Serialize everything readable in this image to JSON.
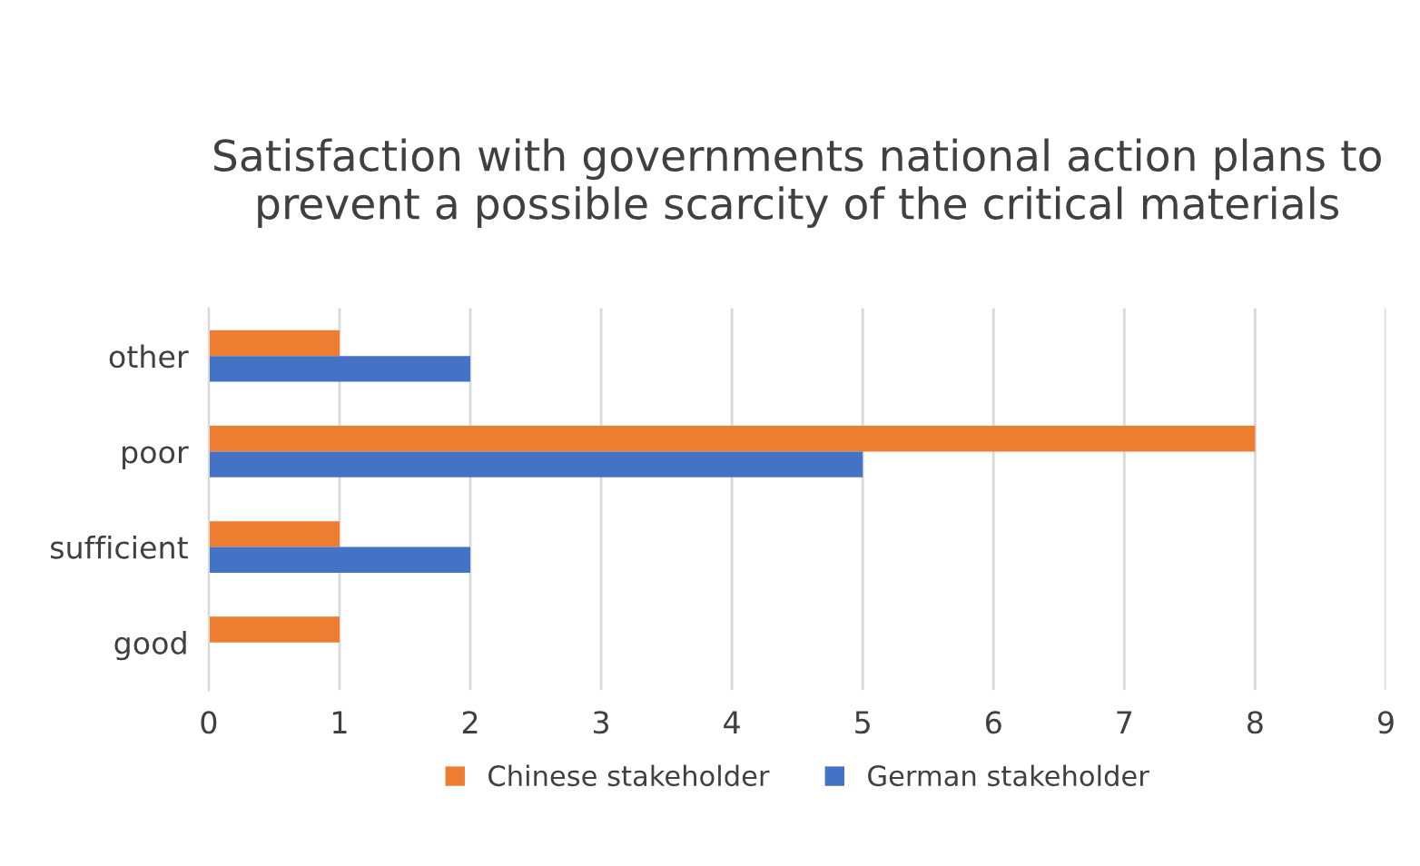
{
  "chart_data": {
    "type": "bar",
    "orientation": "horizontal",
    "title": "Satisfaction with governments national action plans to prevent a possible scarcity of the critical materials",
    "categories": [
      "other",
      "poor",
      "sufficient",
      "good"
    ],
    "series": [
      {
        "name": "Chinese stakeholder",
        "color": "#ed7d31",
        "values": [
          1,
          8,
          1,
          1
        ]
      },
      {
        "name": "German stakeholder",
        "color": "#4472c4",
        "values": [
          2,
          5,
          2,
          0
        ]
      }
    ],
    "xlim": [
      0,
      9
    ],
    "xticks": [
      0,
      1,
      2,
      3,
      4,
      5,
      6,
      7,
      8,
      9
    ],
    "grid": "x",
    "legend": "bottom"
  }
}
